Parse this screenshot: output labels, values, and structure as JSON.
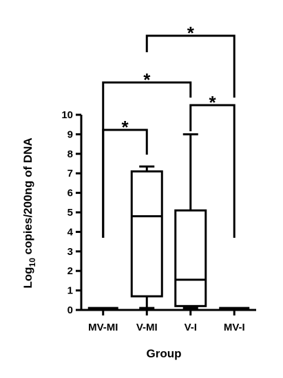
{
  "chart_data": {
    "type": "box",
    "title": "",
    "xlabel": "Group",
    "ylabel_main": "Log",
    "ylabel_sub": "10",
    "ylabel_rest": " copies/200ng of DNA",
    "ylim": [
      0,
      10
    ],
    "yticks": [
      "0",
      "1",
      "2",
      "3",
      "4",
      "5",
      "6",
      "7",
      "8",
      "9",
      "10"
    ],
    "grid": false,
    "categories": [
      "MV-MI",
      "V-MI",
      "V-I",
      "MV-I"
    ],
    "boxes": [
      {
        "group": "MV-MI",
        "min": 0.1,
        "q1": 0.1,
        "median": 0.1,
        "q3": 0.1,
        "max": 0.1
      },
      {
        "group": "V-MI",
        "min": 0.1,
        "q1": 0.7,
        "median": 4.8,
        "q3": 7.1,
        "max": 7.35
      },
      {
        "group": "V-I",
        "min": 0.1,
        "q1": 0.2,
        "median": 1.55,
        "q3": 5.1,
        "max": 9.0
      },
      {
        "group": "MV-I",
        "min": 0.1,
        "q1": 0.1,
        "median": 0.1,
        "q3": 0.1,
        "max": 0.1
      }
    ],
    "significance": [
      {
        "from": "MV-MI",
        "to": "V-MI",
        "label": "*"
      },
      {
        "from": "V-I",
        "to": "MV-I",
        "label": "*"
      },
      {
        "from": "MV-MI",
        "to": "V-I",
        "label": "*"
      },
      {
        "from": "V-MI",
        "to": "MV-I",
        "label": "*"
      }
    ]
  }
}
